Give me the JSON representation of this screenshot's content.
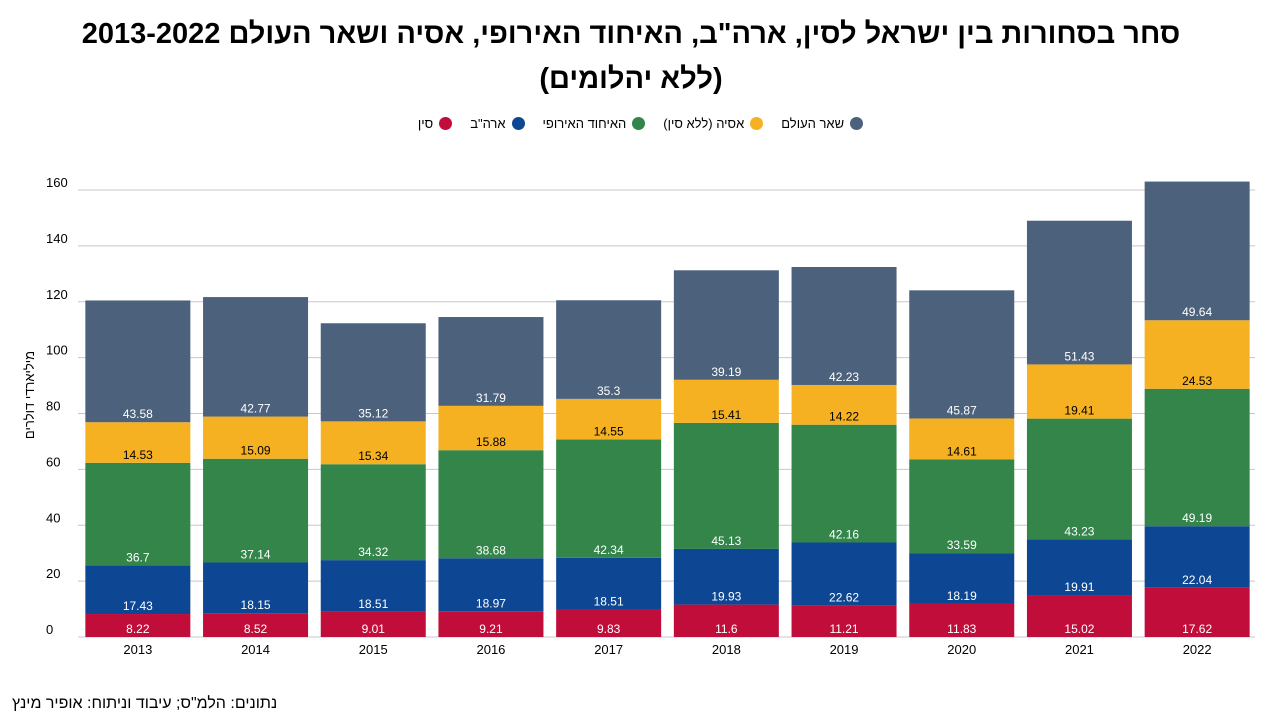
{
  "chart_data": {
    "type": "bar",
    "stacked": true,
    "title_lines": [
      "סחר בסחורות  בין ישראל לסין, ארה\"ב, האיחוד האירופי, אסיה ושאר העולם 2013-2022",
      "(ללא יהלומים)"
    ],
    "ylabel": "מיליארדי דולרים",
    "xlabel": "",
    "ylim": [
      0,
      160
    ],
    "yticks": [
      0,
      20,
      40,
      60,
      80,
      100,
      120,
      140,
      160
    ],
    "grid": true,
    "legend_position": "top-center",
    "categories": [
      "2013",
      "2014",
      "2015",
      "2016",
      "2017",
      "2018",
      "2019",
      "2020",
      "2021",
      "2022"
    ],
    "series": [
      {
        "name": "סין",
        "color": "#c00d3a",
        "label_color": "#ffffff",
        "values": [
          8.22,
          8.52,
          9.01,
          9.21,
          9.83,
          11.6,
          11.21,
          11.83,
          15.02,
          17.62
        ]
      },
      {
        "name": "ארה\"ב",
        "color": "#0d4692",
        "label_color": "#ffffff",
        "values": [
          17.43,
          18.15,
          18.51,
          18.97,
          18.51,
          19.93,
          22.62,
          18.19,
          19.91,
          22.04
        ]
      },
      {
        "name": "האיחוד האירופי",
        "color": "#33854a",
        "label_color": "#ffffff",
        "values": [
          36.7,
          37.14,
          34.32,
          38.68,
          42.34,
          45.13,
          42.16,
          33.59,
          43.23,
          49.19
        ]
      },
      {
        "name": "אסיה (ללא סין)",
        "color": "#f5b122",
        "label_color": "#000000",
        "values": [
          14.53,
          15.09,
          15.34,
          15.88,
          14.55,
          15.41,
          14.22,
          14.61,
          19.41,
          24.53
        ]
      },
      {
        "name": "שאר העולם",
        "color": "#4c617c",
        "label_color": "#ffffff",
        "values": [
          43.58,
          42.77,
          35.12,
          31.79,
          35.3,
          39.19,
          42.23,
          45.87,
          51.43,
          49.64
        ]
      }
    ]
  },
  "source_note": "נתונים: הלמ\"ס; עיבוד וניתוח: אופיר מינץ"
}
